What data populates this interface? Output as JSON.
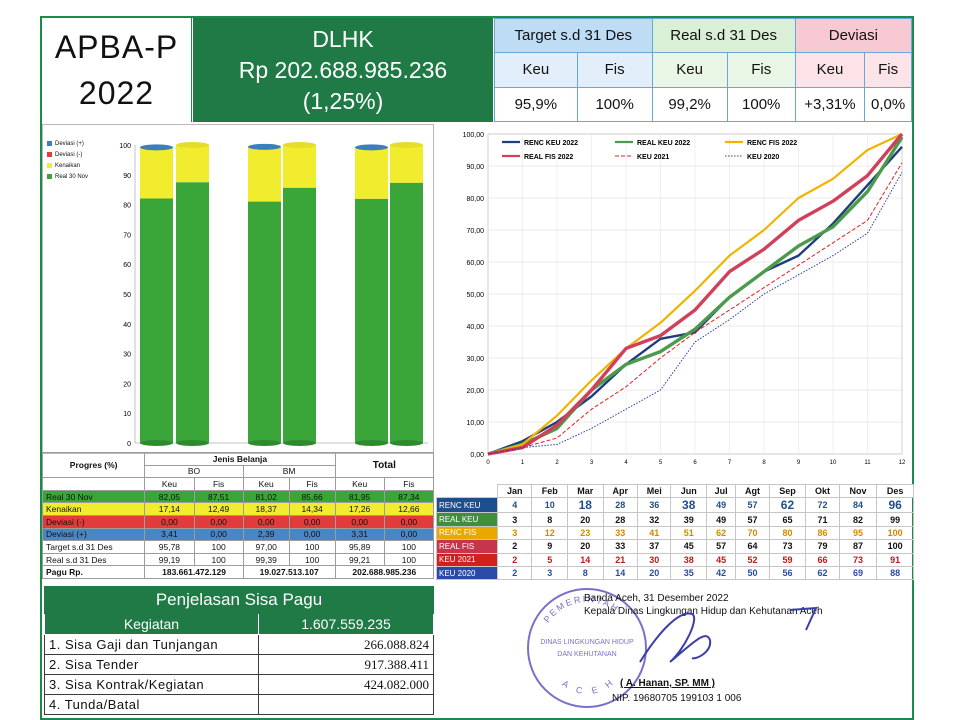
{
  "header": {
    "title_line1": "APBA-P",
    "title_line2": "2022",
    "org": "DLHK",
    "amount": "Rp 202.688.985.236",
    "percent": "(1,25%)",
    "groups": [
      "Target s.d 31 Des",
      "Real s.d 31 Des",
      "Deviasi"
    ],
    "sub": [
      "Keu",
      "Fis",
      "Keu",
      "Fis",
      "Keu",
      "Fis"
    ],
    "values": [
      "95,9%",
      "100%",
      "99,2%",
      "100%",
      "+3,31%",
      "0,0%"
    ]
  },
  "bar_chart": {
    "legend": [
      "Deviasi (+)",
      "Deviasi (-)",
      "Kenaikan",
      "Real 30 Nov"
    ],
    "yticks": [
      "100",
      "90",
      "80",
      "70",
      "60",
      "50",
      "40",
      "30",
      "20",
      "10",
      "0"
    ],
    "columns": [
      {
        "real": 82.05,
        "kenaikan": 17.14,
        "dev_plus": 3.41
      },
      {
        "real": 87.51,
        "kenaikan": 12.49,
        "dev_plus": 0
      },
      {
        "real": 81.02,
        "kenaikan": 18.37,
        "dev_plus": 2.39
      },
      {
        "real": 85.66,
        "kenaikan": 14.34,
        "dev_plus": 0
      },
      {
        "real": 81.95,
        "kenaikan": 17.26,
        "dev_plus": 3.31
      },
      {
        "real": 87.34,
        "kenaikan": 12.66,
        "dev_plus": 0
      }
    ],
    "colors": {
      "real": "#3aa63a",
      "kenaikan": "#f2ec2e",
      "dev_plus": "#3a7fc0"
    }
  },
  "progres_table": {
    "title": "Progres (%)",
    "jenis": "Jenis Belanja",
    "groups": [
      "BO",
      "BM",
      "Total"
    ],
    "sub": [
      "Keu",
      "Fis",
      "Keu",
      "Fis",
      "Keu",
      "Fis"
    ],
    "rows": [
      {
        "label": "Real 30 Nov",
        "bg": "#3aa63a",
        "cells": [
          "82,05",
          "87,51",
          "81,02",
          "85,66",
          "81,95",
          "87,34"
        ]
      },
      {
        "label": "Kenaikan",
        "bg": "#f2ec2e",
        "cells": [
          "17,14",
          "12,49",
          "18,37",
          "14,34",
          "17,26",
          "12,66"
        ]
      },
      {
        "label": "Deviasi  (-)",
        "bg": "#e23b3b",
        "cells": [
          "0,00",
          "0,00",
          "0,00",
          "0,00",
          "0,00",
          "0,00"
        ]
      },
      {
        "label": "Deviasi (+)",
        "bg": "#4a86c5",
        "cells": [
          "3,41",
          "0,00",
          "2,39",
          "0,00",
          "3,31",
          "0,00"
        ]
      },
      {
        "label": "Target s.d 31 Des",
        "bg": "#ffffff",
        "cells": [
          "95,78",
          "100",
          "97,00",
          "100",
          "95,89",
          "100"
        ]
      },
      {
        "label": "Real s.d 31 Des",
        "bg": "#ffffff",
        "cells": [
          "99,19",
          "100",
          "99,39",
          "100",
          "99,21",
          "100"
        ]
      }
    ],
    "pagu_label": "Pagu Rp.",
    "pagu": [
      "183.661.472.129",
      "19.027.513.107",
      "202.688.985.236"
    ]
  },
  "chart_data": {
    "type": "line",
    "x": [
      0,
      1,
      2,
      3,
      4,
      5,
      6,
      7,
      8,
      9,
      10,
      11,
      12
    ],
    "ylim": [
      0,
      100
    ],
    "yticks": [
      "0,00",
      "10,00",
      "20,00",
      "30,00",
      "40,00",
      "50,00",
      "60,00",
      "70,00",
      "80,00",
      "90,00",
      "100,00"
    ],
    "series": [
      {
        "name": "RENC KEU 2022",
        "color": "#1f3f7a",
        "values": [
          0,
          4,
          10,
          18,
          28,
          36,
          38,
          49,
          57,
          62,
          72,
          84,
          96
        ]
      },
      {
        "name": "REAL KEU 2022",
        "color": "#4c9a4c",
        "values": [
          0,
          3,
          8,
          20,
          28,
          32,
          39,
          49,
          57,
          65,
          71,
          82,
          99
        ]
      },
      {
        "name": "RENC FIS 2022",
        "color": "#f0b400",
        "values": [
          0,
          3,
          12,
          23,
          33,
          41,
          51,
          62,
          70,
          80,
          86,
          95,
          100
        ]
      },
      {
        "name": "REAL FIS 2022",
        "color": "#d0405a",
        "values": [
          0,
          2,
          9,
          20,
          33,
          37,
          45,
          57,
          64,
          73,
          79,
          87,
          100
        ]
      },
      {
        "name": "KEU 2021",
        "color": "#e02020",
        "values": [
          0,
          2,
          5,
          14,
          21,
          30,
          38,
          45,
          52,
          59,
          66,
          73,
          91
        ]
      },
      {
        "name": "KEU 2020",
        "color": "#2a3f9e",
        "values": [
          0,
          2,
          3,
          8,
          14,
          20,
          35,
          42,
          50,
          56,
          62,
          69,
          88
        ]
      }
    ]
  },
  "monthly_table": {
    "months": [
      "Jan",
      "Feb",
      "Mar",
      "Apr",
      "Mei",
      "Jun",
      "Jul",
      "Agt",
      "Sep",
      "Okt",
      "Nov",
      "Des"
    ],
    "rows": [
      {
        "label": "RENC KEU",
        "label_bg": "#1f4e8c",
        "text_color": "#1f4e8c",
        "cells": [
          "4",
          "10",
          "18",
          "28",
          "36",
          "38",
          "49",
          "57",
          "62",
          "72",
          "84",
          "96"
        ]
      },
      {
        "label": "REAL KEU",
        "label_bg": "#3f8f3f",
        "text_color": "#111111",
        "cells": [
          "3",
          "8",
          "20",
          "28",
          "32",
          "39",
          "49",
          "57",
          "65",
          "71",
          "82",
          "99"
        ]
      },
      {
        "label": "RENC FIS",
        "label_bg": "#e8a800",
        "text_color": "#d08a00",
        "cells": [
          "3",
          "12",
          "23",
          "33",
          "41",
          "51",
          "62",
          "70",
          "80",
          "86",
          "95",
          "100"
        ]
      },
      {
        "label": "REAL FIS",
        "label_bg": "#c8344c",
        "text_color": "#111111",
        "cells": [
          "2",
          "9",
          "20",
          "33",
          "37",
          "45",
          "57",
          "64",
          "73",
          "79",
          "87",
          "100"
        ]
      },
      {
        "label": "KEU 2021",
        "label_bg": "#d21f1f",
        "text_color": "#c01818",
        "cells": [
          "2",
          "5",
          "14",
          "21",
          "30",
          "38",
          "45",
          "52",
          "59",
          "66",
          "73",
          "91"
        ]
      },
      {
        "label": "KEU 2020",
        "label_bg": "#2b4aa8",
        "text_color": "#2b4aa8",
        "cells": [
          "2",
          "3",
          "8",
          "14",
          "20",
          "35",
          "42",
          "50",
          "56",
          "62",
          "69",
          "88"
        ]
      }
    ]
  },
  "sisa_pagu": {
    "title": "Penjelasan Sisa Pagu",
    "kegiatan_label": "Kegiatan",
    "kegiatan_value": "1.607.559.235",
    "items": [
      {
        "label": "1. Sisa Gaji dan Tunjangan",
        "value": "266.088.824"
      },
      {
        "label": "2. Sisa Tender",
        "value": "917.388.411"
      },
      {
        "label": "3. Sisa Kontrak/Kegiatan",
        "value": "424.082.000"
      },
      {
        "label": "4. Tunda/Batal",
        "value": ""
      }
    ]
  },
  "signature": {
    "place_date": "Banda Aceh, 31 Desember 2022",
    "position": "Kepala Dinas Lingkungan Hidup dan Kehutanan Aceh",
    "name": "( A. Hanan, SP. MM )",
    "nip": "NIP. 19680705 199103 1 006",
    "stamp_text": [
      "PEMERINTAH",
      "DINAS LINGKUNGAN HIDUP",
      "DAN KEHUTANAN",
      "A C E H"
    ]
  }
}
